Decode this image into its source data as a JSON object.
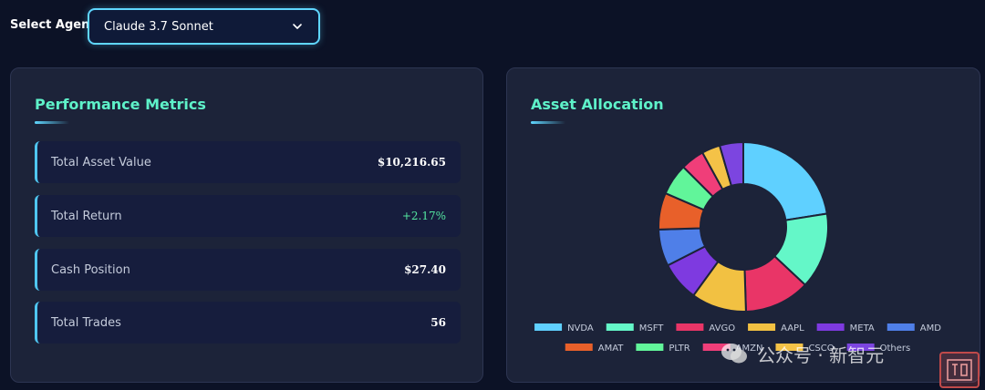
{
  "header": {
    "agent_label": "Select Agent:",
    "agent_selected": "Claude 3.7 Sonnet"
  },
  "performance": {
    "title": "Performance Metrics",
    "metrics": [
      {
        "label": "Total Asset Value",
        "value": "$10,216.65"
      },
      {
        "label": "Total Return",
        "value": "+2.17%"
      },
      {
        "label": "Cash Position",
        "value": "$27.40"
      },
      {
        "label": "Total Trades",
        "value": "56"
      }
    ]
  },
  "allocation": {
    "title": "Asset Allocation"
  },
  "chart_data": {
    "type": "pie",
    "variant": "doughnut",
    "title": "Asset Allocation",
    "categories": [
      "NVDA",
      "MSFT",
      "AVGO",
      "AAPL",
      "META",
      "AMD",
      "AMAT",
      "PLTR",
      "AMZN",
      "CSCO",
      "Others"
    ],
    "values": [
      22.5,
      14.5,
      12.5,
      10.5,
      7.5,
      7.0,
      7.0,
      6.0,
      4.5,
      3.5,
      4.5
    ],
    "colors": [
      "#5fd0ff",
      "#64f7c8",
      "#e93567",
      "#f2c142",
      "#7e3ae0",
      "#4f7fe8",
      "#e8602a",
      "#61f59a",
      "#f03e79",
      "#f4c247",
      "#7c45e0"
    ],
    "legend_position": "bottom"
  },
  "watermark": {
    "text": "公众号 · 新智元"
  }
}
